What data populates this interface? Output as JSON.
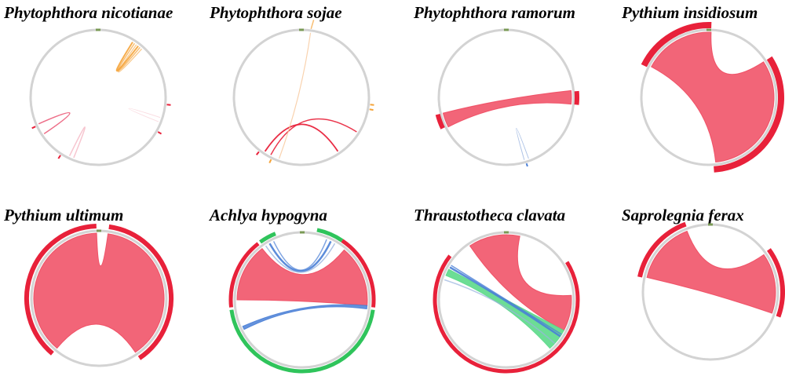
{
  "colors": {
    "ring": "#d3d3d3",
    "red": "#e8213a",
    "red_fill": "#f04a60",
    "green": "#2fc45b",
    "green_fill": "#5cd98a",
    "blue": "#4a7fd6",
    "orange": "#f5a43a",
    "pink": "#f2a0b0",
    "marker": "#7a9a55"
  },
  "panels": [
    {
      "title": "Phytophthora nicotianae"
    },
    {
      "title": "Phytophthora sojae"
    },
    {
      "title": "Phytophthora ramorum"
    },
    {
      "title": "Pythium insidiosum"
    },
    {
      "title": "Pythium ultimum"
    },
    {
      "title": "Achlya hypogyna"
    },
    {
      "title": "Thraustotheca clavata"
    },
    {
      "title": "Saprolegnia ferax"
    }
  ]
}
